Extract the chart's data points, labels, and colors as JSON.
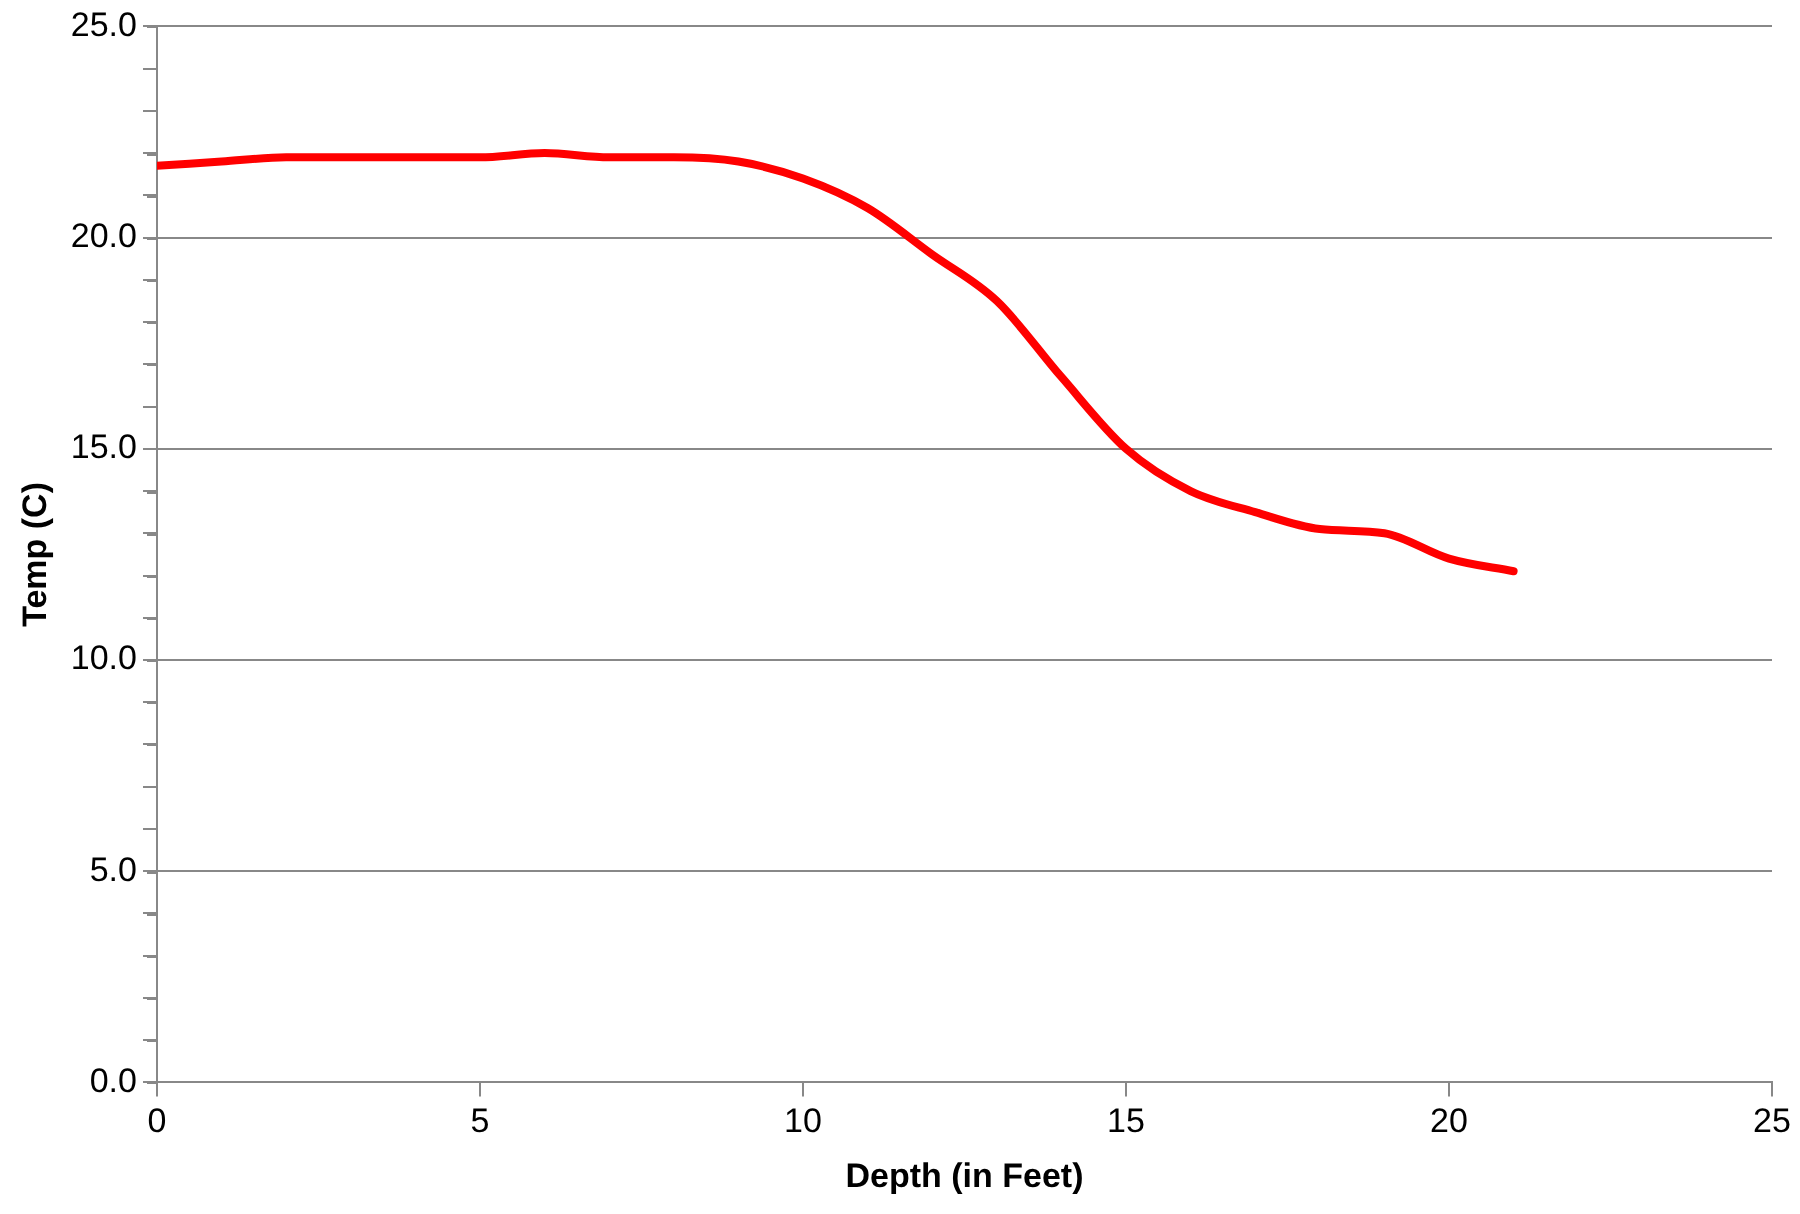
{
  "chart_data": {
    "type": "line",
    "xlabel": "Depth (in Feet)",
    "ylabel": "Temp (C)",
    "x": [
      0,
      1,
      2,
      3,
      4,
      5,
      6,
      7,
      8,
      9,
      10,
      11,
      12,
      13,
      14,
      15,
      16,
      17,
      18,
      19,
      20,
      21
    ],
    "series": [
      {
        "color": "#ff0000",
        "values": [
          21.7,
          21.8,
          21.9,
          21.9,
          21.9,
          21.9,
          22.0,
          21.9,
          21.9,
          21.8,
          21.4,
          20.7,
          19.6,
          18.5,
          16.7,
          15.0,
          14.0,
          13.5,
          13.1,
          13.0,
          12.4,
          12.1
        ]
      }
    ],
    "xlim": [
      0,
      25
    ],
    "xticks": [
      0,
      5,
      10,
      15,
      20,
      25
    ],
    "ylim": [
      0,
      25
    ],
    "yticks": [
      {
        "value": 0,
        "label": "0.0"
      },
      {
        "value": 1,
        "label": null
      },
      {
        "value": 2,
        "label": null
      },
      {
        "value": 3,
        "label": null
      },
      {
        "value": 4,
        "label": null
      },
      {
        "value": 5,
        "label": "5.0"
      },
      {
        "value": 6,
        "label": null
      },
      {
        "value": 7,
        "label": null
      },
      {
        "value": 8,
        "label": null
      },
      {
        "value": 9,
        "label": null
      },
      {
        "value": 10,
        "label": "10.0"
      },
      {
        "value": 11,
        "label": null
      },
      {
        "value": 12,
        "label": null
      },
      {
        "value": 13,
        "label": null
      },
      {
        "value": 14,
        "label": null
      },
      {
        "value": 15,
        "label": "15.0"
      },
      {
        "value": 16,
        "label": null
      },
      {
        "value": 17,
        "label": null
      },
      {
        "value": 18,
        "label": null
      },
      {
        "value": 19,
        "label": null
      },
      {
        "value": 20,
        "label": "20.0"
      },
      {
        "value": 21,
        "label": null
      },
      {
        "value": 22,
        "label": null
      },
      {
        "value": 23,
        "label": null
      },
      {
        "value": 24,
        "label": null
      },
      {
        "value": 25,
        "label": "25.0"
      }
    ],
    "grid": "y",
    "legend": false,
    "marker": "none",
    "line_style": "solid"
  }
}
